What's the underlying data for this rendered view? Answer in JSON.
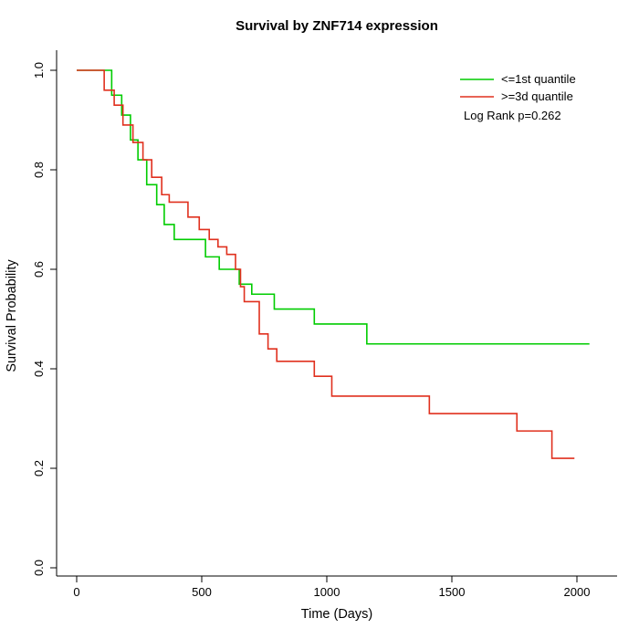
{
  "chart_data": {
    "type": "line",
    "subtype": "kaplan-meier-step",
    "title": "Survival by ZNF714 expression",
    "xlabel": "Time (Days)",
    "ylabel": "Survival Probability",
    "xlim": [
      0,
      2100
    ],
    "ylim": [
      0.0,
      1.0
    ],
    "xticks": [
      0,
      500,
      1000,
      1500,
      2000
    ],
    "yticks": [
      0.0,
      0.2,
      0.4,
      0.6,
      0.8,
      1.0
    ],
    "grid": false,
    "legend_position": "top-right",
    "annotation": "Log Rank p=0.262",
    "series": [
      {
        "name": "<=1st quantile",
        "color": "#00CC00",
        "points": [
          [
            0,
            1.0
          ],
          [
            140,
            0.95
          ],
          [
            180,
            0.91
          ],
          [
            215,
            0.86
          ],
          [
            245,
            0.82
          ],
          [
            280,
            0.77
          ],
          [
            320,
            0.73
          ],
          [
            350,
            0.69
          ],
          [
            390,
            0.66
          ],
          [
            515,
            0.625
          ],
          [
            570,
            0.6
          ],
          [
            650,
            0.57
          ],
          [
            700,
            0.55
          ],
          [
            790,
            0.52
          ],
          [
            950,
            0.49
          ],
          [
            1160,
            0.45
          ],
          [
            2050,
            0.45
          ]
        ]
      },
      {
        "name": ">=3d quantile",
        "color": "#E0301E",
        "points": [
          [
            0,
            1.0
          ],
          [
            110,
            0.96
          ],
          [
            150,
            0.93
          ],
          [
            185,
            0.89
          ],
          [
            225,
            0.855
          ],
          [
            265,
            0.82
          ],
          [
            300,
            0.785
          ],
          [
            340,
            0.75
          ],
          [
            370,
            0.735
          ],
          [
            445,
            0.705
          ],
          [
            490,
            0.68
          ],
          [
            530,
            0.66
          ],
          [
            565,
            0.645
          ],
          [
            600,
            0.63
          ],
          [
            635,
            0.6
          ],
          [
            655,
            0.565
          ],
          [
            670,
            0.535
          ],
          [
            730,
            0.47
          ],
          [
            765,
            0.44
          ],
          [
            800,
            0.415
          ],
          [
            950,
            0.385
          ],
          [
            1020,
            0.345
          ],
          [
            1410,
            0.31
          ],
          [
            1760,
            0.275
          ],
          [
            1900,
            0.22
          ],
          [
            1990,
            0.22
          ]
        ]
      }
    ]
  }
}
